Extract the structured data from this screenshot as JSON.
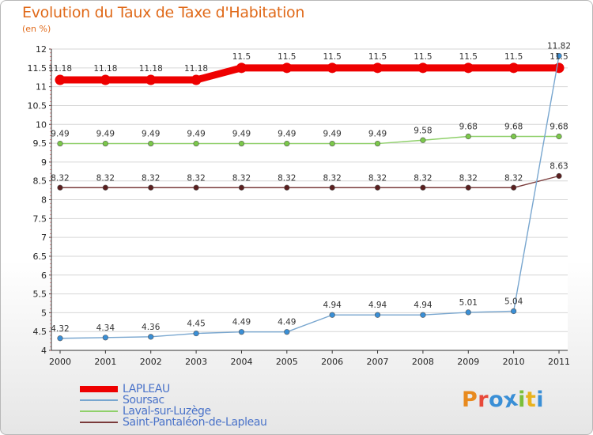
{
  "title": "Evolution du Taux de Taxe d'Habitation",
  "unit_label": "(en %)",
  "logo_letters": [
    "P",
    "r",
    "o",
    "x",
    "i",
    "t",
    "i"
  ],
  "logo_colors": [
    "#e88a1e",
    "#e84a3a",
    "#3a8fd6",
    "#3a8fd6",
    "#7bbf3a",
    "#e8b21e",
    "#3a8fd6"
  ],
  "chart_data": {
    "type": "line",
    "title": "Evolution du Taux de Taxe d'Habitation",
    "ylabel": "(en %)",
    "xlabel": "",
    "x": [
      "2000",
      "2001",
      "2002",
      "2003",
      "2004",
      "2005",
      "2006",
      "2007",
      "2008",
      "2009",
      "2010",
      "2011"
    ],
    "ylim": [
      4,
      12
    ],
    "yticks": [
      "4",
      "4.5",
      "5",
      "5.5",
      "6",
      "6.5",
      "7",
      "7.5",
      "8",
      "8.5",
      "9",
      "9.5",
      "10",
      "10.5",
      "11",
      "11.5",
      "12"
    ],
    "grid": "horizontal",
    "legend_position": "bottom-left",
    "series": [
      {
        "name": "LAPLEAU",
        "color": "#ee0000",
        "values": [
          11.18,
          11.18,
          11.18,
          11.18,
          11.5,
          11.5,
          11.5,
          11.5,
          11.5,
          11.5,
          11.5,
          11.5
        ],
        "labels": [
          "11.18",
          "11.18",
          "11.18",
          "11.18",
          "11.5",
          "11.5",
          "11.5",
          "11.5",
          "11.5",
          "11.5",
          "11.5",
          "11.5"
        ]
      },
      {
        "name": "Soursac",
        "color": "#78a6cf",
        "point_color": "#3a8fd6",
        "values": [
          4.32,
          4.34,
          4.36,
          4.45,
          4.49,
          4.49,
          4.94,
          4.94,
          4.94,
          5.01,
          5.04,
          11.82
        ],
        "labels": [
          "4.32",
          "4.34",
          "4.36",
          "4.45",
          "4.49",
          "4.49",
          "4.94",
          "4.94",
          "4.94",
          "5.01",
          "5.04",
          "11.82"
        ]
      },
      {
        "name": "Laval-sur-Luzège",
        "color": "#8fd06a",
        "point_color": "#7bc84a",
        "values": [
          9.49,
          9.49,
          9.49,
          9.49,
          9.49,
          9.49,
          9.49,
          9.49,
          9.58,
          9.68,
          9.68,
          9.68
        ],
        "labels": [
          "9.49",
          "9.49",
          "9.49",
          "9.49",
          "9.49",
          "9.49",
          "9.49",
          "9.49",
          "9.58",
          "9.68",
          "9.68",
          "9.68"
        ]
      },
      {
        "name": "Saint-Pantaléon-de-Lapleau",
        "color": "#7a3b3b",
        "point_color": "#5a1f1f",
        "values": [
          8.32,
          8.32,
          8.32,
          8.32,
          8.32,
          8.32,
          8.32,
          8.32,
          8.32,
          8.32,
          8.32,
          8.63
        ],
        "labels": [
          "8.32",
          "8.32",
          "8.32",
          "8.32",
          "8.32",
          "8.32",
          "8.32",
          "8.32",
          "8.32",
          "8.32",
          "8.32",
          "8.63"
        ]
      }
    ]
  }
}
